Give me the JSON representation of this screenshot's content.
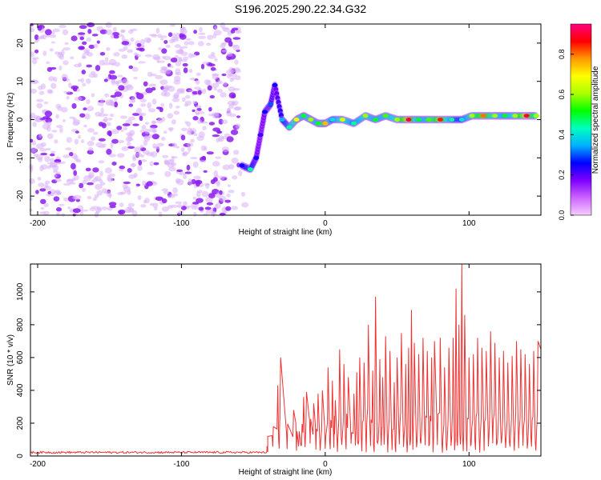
{
  "title": "S196.2025.290.22.34.G32",
  "chart_data": [
    {
      "type": "heatmap",
      "title": "S196.2025.290.22.34.G32",
      "xlabel": "Height of straight line (km)",
      "ylabel": "Frequency (Hz)",
      "xlim": [
        -205,
        150
      ],
      "ylim": [
        -25,
        25
      ],
      "xticks": [
        -200,
        -100,
        0,
        100
      ],
      "yticks": [
        -20,
        -10,
        0,
        10,
        20
      ],
      "colorbar": {
        "label": "Normalized spectral amplitude",
        "range": [
          0,
          0.95
        ],
        "ticks": [
          "0.0",
          "0.2",
          "0.4",
          "0.6",
          "0.8"
        ],
        "tick_values": [
          0.0,
          0.2,
          0.4,
          0.6,
          0.8
        ],
        "colors": [
          "#f5ccff",
          "#cc66ff",
          "#7f00ff",
          "#0000ff",
          "#00b0ff",
          "#00ffc0",
          "#00ff00",
          "#aaff00",
          "#ffff00",
          "#ff9900",
          "#ff0000",
          "#ff0080"
        ]
      },
      "noise_region": {
        "x": [
          -205,
          -60
        ],
        "y": [
          -25,
          25
        ],
        "amplitude": 0.15
      },
      "ridge": [
        {
          "x": -58,
          "y": -12,
          "amp": 0.25
        },
        {
          "x": -52,
          "y": -13,
          "amp": 0.45
        },
        {
          "x": -48,
          "y": -10,
          "amp": 0.25
        },
        {
          "x": -45,
          "y": -4,
          "amp": 0.22
        },
        {
          "x": -42,
          "y": 2,
          "amp": 0.25
        },
        {
          "x": -38,
          "y": 4,
          "amp": 0.3
        },
        {
          "x": -35,
          "y": 9,
          "amp": 0.25
        },
        {
          "x": -30,
          "y": 0,
          "amp": 0.35
        },
        {
          "x": -25,
          "y": -2,
          "amp": 0.45
        },
        {
          "x": -20,
          "y": 0,
          "amp": 0.7
        },
        {
          "x": -15,
          "y": 1,
          "amp": 0.5
        },
        {
          "x": -10,
          "y": 0,
          "amp": 0.6
        },
        {
          "x": -5,
          "y": -1,
          "amp": 0.5
        },
        {
          "x": 0,
          "y": -1,
          "amp": 0.75
        },
        {
          "x": 5,
          "y": 0,
          "amp": 0.4
        },
        {
          "x": 12,
          "y": 0,
          "amp": 0.65
        },
        {
          "x": 20,
          "y": -1,
          "amp": 0.45
        },
        {
          "x": 28,
          "y": 1,
          "amp": 0.6
        },
        {
          "x": 35,
          "y": 0,
          "amp": 0.5
        },
        {
          "x": 42,
          "y": 1,
          "amp": 0.55
        },
        {
          "x": 50,
          "y": 0,
          "amp": 0.6
        },
        {
          "x": 58,
          "y": 0,
          "amp": 0.9
        },
        {
          "x": 65,
          "y": 0,
          "amp": 0.5
        },
        {
          "x": 72,
          "y": 0,
          "amp": 0.55
        },
        {
          "x": 80,
          "y": 0,
          "amp": 0.85
        },
        {
          "x": 88,
          "y": 0,
          "amp": 0.45
        },
        {
          "x": 95,
          "y": 0,
          "amp": 0.4
        },
        {
          "x": 102,
          "y": 1,
          "amp": 0.6
        },
        {
          "x": 110,
          "y": 1,
          "amp": 0.8
        },
        {
          "x": 118,
          "y": 1,
          "amp": 0.6
        },
        {
          "x": 125,
          "y": 1,
          "amp": 0.5
        },
        {
          "x": 132,
          "y": 1,
          "amp": 0.6
        },
        {
          "x": 140,
          "y": 1,
          "amp": 0.9
        },
        {
          "x": 147,
          "y": 1,
          "amp": 0.6
        }
      ]
    },
    {
      "type": "line",
      "xlabel": "Height of straight line (km)",
      "ylabel": "SNR (10 * v/v)",
      "xlim": [
        -205,
        150
      ],
      "ylim": [
        0,
        1170
      ],
      "xticks": [
        -200,
        -100,
        0,
        100
      ],
      "yticks": [
        0,
        200,
        400,
        600,
        800,
        1000
      ],
      "color": "#ee3333",
      "noise_floor": {
        "x": [
          -205,
          -40
        ],
        "level": 22,
        "jitter": 12
      },
      "peaks": [
        [
          -40,
          120
        ],
        [
          -33,
          430
        ],
        [
          -31,
          600
        ],
        [
          -22,
          280
        ],
        [
          -18,
          150
        ],
        [
          -15,
          360
        ],
        [
          -13,
          390
        ],
        [
          -8,
          320
        ],
        [
          -5,
          380
        ],
        [
          -2,
          400
        ],
        [
          2,
          540
        ],
        [
          5,
          460
        ],
        [
          7,
          340
        ],
        [
          10,
          650
        ],
        [
          13,
          560
        ],
        [
          16,
          480
        ],
        [
          20,
          380
        ],
        [
          22,
          510
        ],
        [
          24,
          600
        ],
        [
          27,
          570
        ],
        [
          30,
          800
        ],
        [
          33,
          520
        ],
        [
          35,
          970
        ],
        [
          38,
          590
        ],
        [
          40,
          480
        ],
        [
          42,
          730
        ],
        [
          45,
          640
        ],
        [
          48,
          450
        ],
        [
          50,
          600
        ],
        [
          53,
          750
        ],
        [
          56,
          560
        ],
        [
          58,
          660
        ],
        [
          60,
          890
        ],
        [
          62,
          690
        ],
        [
          65,
          620
        ],
        [
          68,
          720
        ],
        [
          71,
          640
        ],
        [
          74,
          600
        ],
        [
          76,
          700
        ],
        [
          80,
          720
        ],
        [
          83,
          540
        ],
        [
          86,
          660
        ],
        [
          89,
          720
        ],
        [
          91,
          1020
        ],
        [
          93,
          800
        ],
        [
          95,
          1170
        ],
        [
          97,
          860
        ],
        [
          100,
          600
        ],
        [
          103,
          620
        ],
        [
          106,
          720
        ],
        [
          109,
          660
        ],
        [
          112,
          640
        ],
        [
          115,
          760
        ],
        [
          118,
          690
        ],
        [
          121,
          600
        ],
        [
          124,
          640
        ],
        [
          127,
          570
        ],
        [
          130,
          610
        ],
        [
          133,
          700
        ],
        [
          136,
          650
        ],
        [
          139,
          620
        ],
        [
          142,
          560
        ],
        [
          145,
          640
        ],
        [
          148,
          700
        ]
      ]
    }
  ]
}
